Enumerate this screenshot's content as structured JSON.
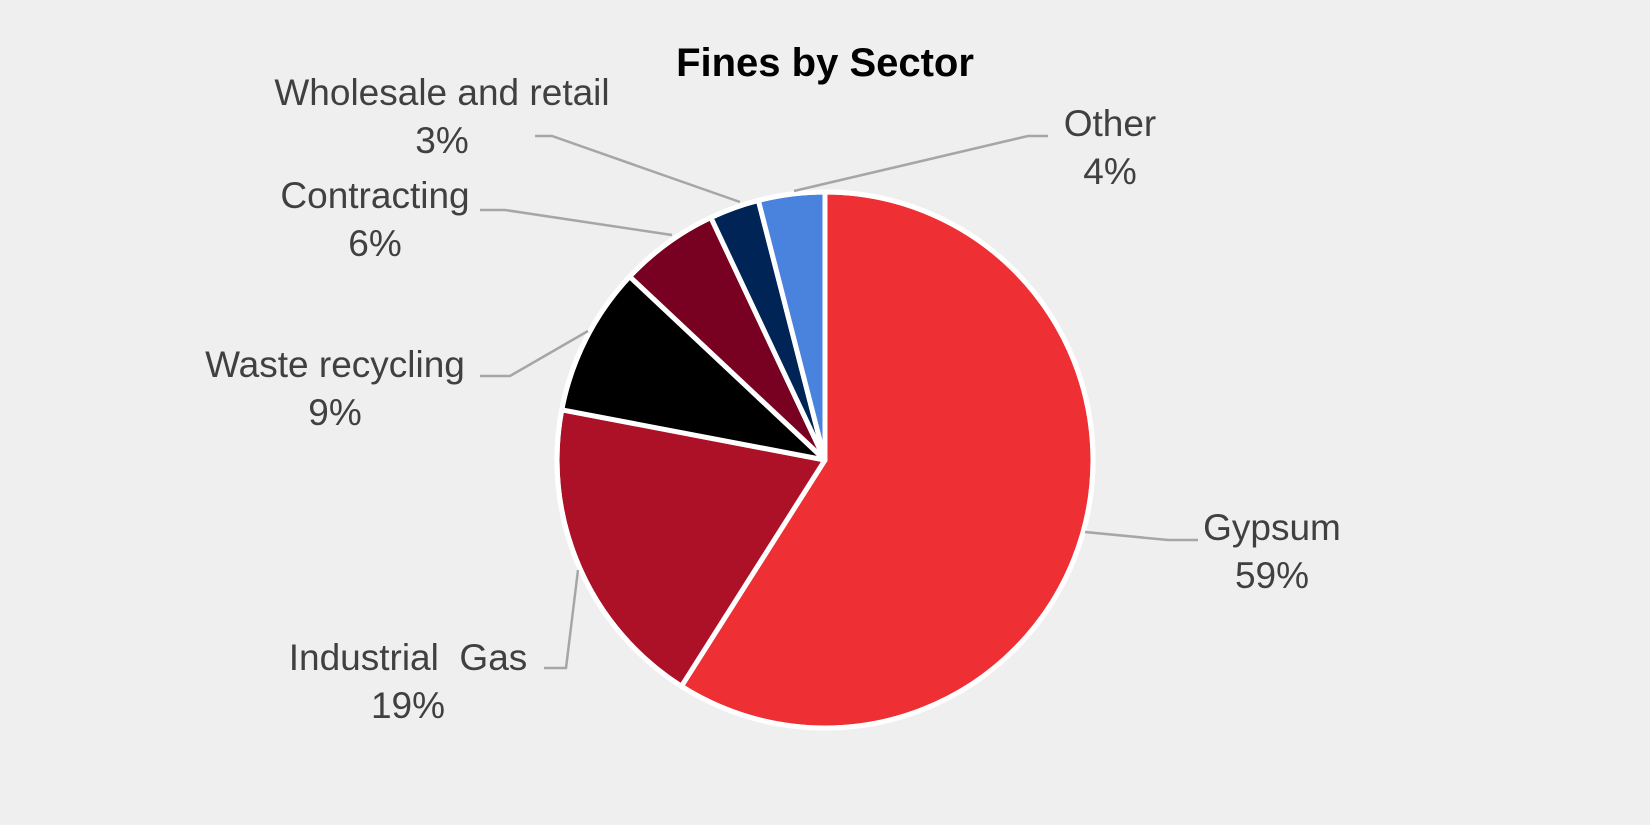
{
  "chart_data": {
    "type": "pie",
    "title": "Fines by Sector",
    "slices": [
      {
        "label": "Gypsum",
        "value": 59,
        "value_label": "59%",
        "color": "#ee3035"
      },
      {
        "label": "Industrial  Gas",
        "value": 19,
        "value_label": "19%",
        "color": "#ad1128"
      },
      {
        "label": "Waste recycling",
        "value": 9,
        "value_label": "9%",
        "color": "#000000"
      },
      {
        "label": "Contracting",
        "value": 6,
        "value_label": "6%",
        "color": "#780021"
      },
      {
        "label": "Wholesale and retail",
        "value": 3,
        "value_label": "3%",
        "color": "#002455"
      },
      {
        "label": "Other",
        "value": 4,
        "value_label": "4%",
        "color": "#4a83dd"
      }
    ],
    "start_angle": "12 o'clock",
    "direction": "clockwise",
    "legend": "none",
    "data_labels": "outside with leader lines"
  }
}
